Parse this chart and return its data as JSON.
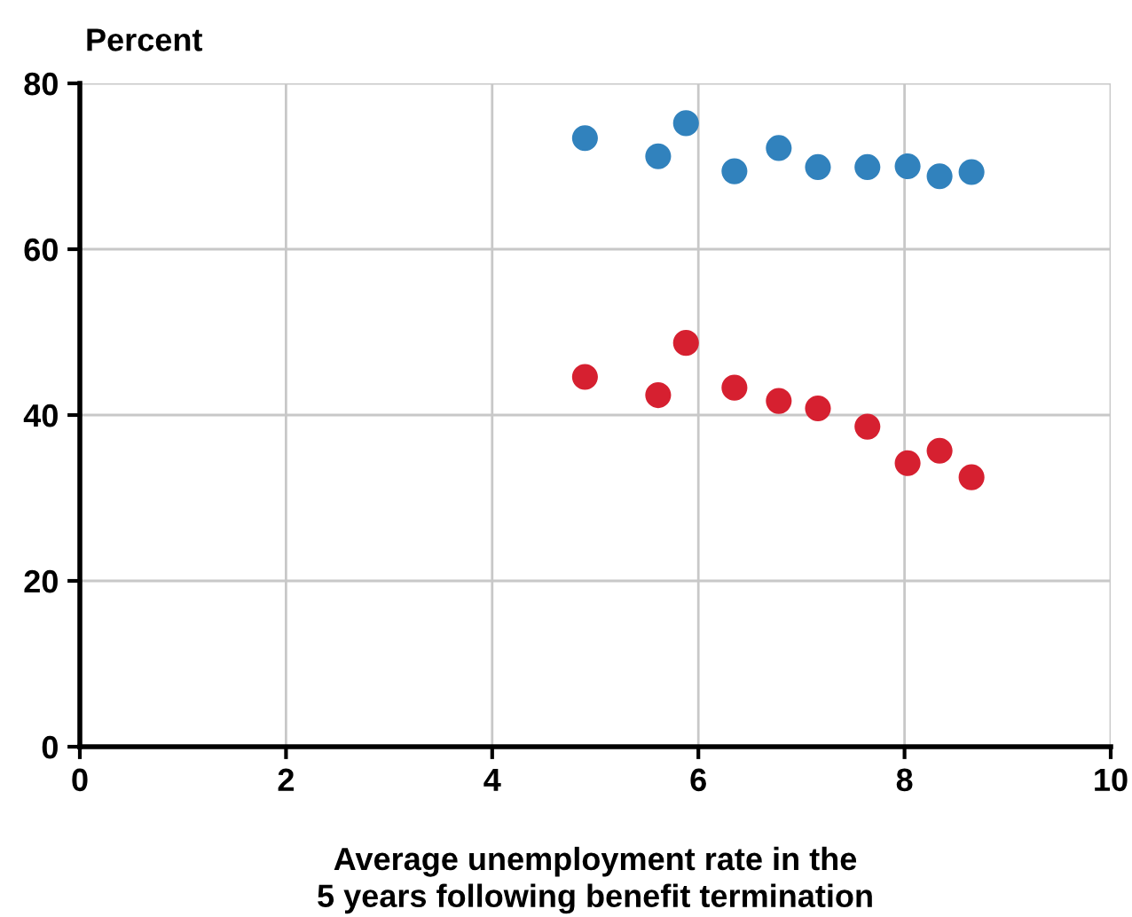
{
  "chart_data": {
    "type": "scatter",
    "ylabel": "Percent",
    "xlabel": "Average unemployment rate in the\n5 years following benefit termination",
    "xlim": [
      0,
      10
    ],
    "xticks": [
      0,
      2,
      4,
      6,
      8,
      10
    ],
    "ylim": [
      0,
      80
    ],
    "yticks": [
      0,
      20,
      40,
      60,
      80
    ],
    "grid": true,
    "marker": "circle",
    "series": [
      {
        "color": "#3182bd",
        "x": [
          4.9,
          5.61,
          5.88,
          6.35,
          6.78,
          7.16,
          7.64,
          8.03,
          8.34,
          8.65
        ],
        "values": [
          73.4,
          71.2,
          75.2,
          69.4,
          72.2,
          69.9,
          69.9,
          70.0,
          68.8,
          69.3
        ]
      },
      {
        "color": "#d62030",
        "x": [
          4.9,
          5.61,
          5.88,
          6.35,
          6.78,
          7.16,
          7.64,
          8.03,
          8.34,
          8.65
        ],
        "values": [
          44.6,
          42.4,
          48.7,
          43.3,
          41.7,
          40.8,
          38.6,
          34.2,
          35.7,
          32.5
        ]
      }
    ]
  }
}
